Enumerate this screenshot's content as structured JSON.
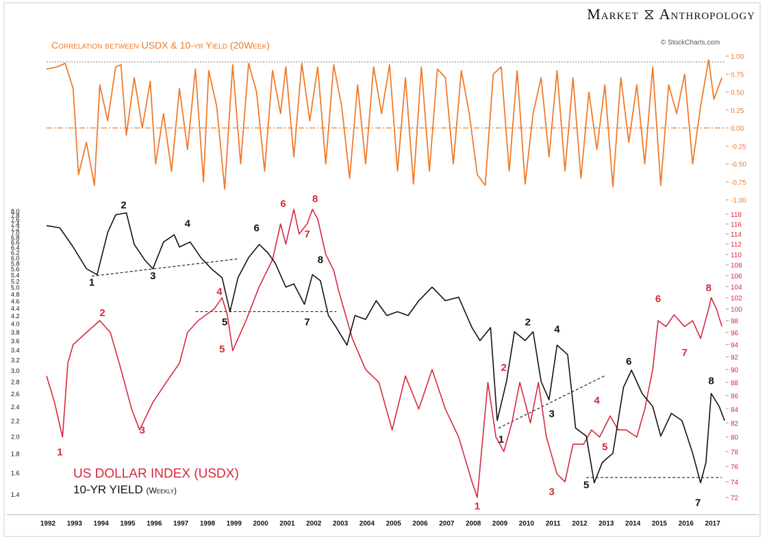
{
  "brand": {
    "left": "Market",
    "right": "Anthropology"
  },
  "watermark": "© StockCharts.com",
  "colors": {
    "orange": "#f07a2a",
    "red": "#d7283c",
    "black": "#111111",
    "dashed": "#222222"
  },
  "chart_data": [
    {
      "type": "line",
      "title": "Correlation between USDX & 10-yr Yield (20Week)",
      "ylim": [
        -1.0,
        1.0
      ],
      "y_ticks": [
        "1.00",
        "0.75",
        "0.50",
        "0.25",
        "0.00",
        "-0.25",
        "-0.50",
        "-0.75",
        "-1.00"
      ],
      "reference_lines": [
        0.92,
        0.0
      ],
      "series": [
        {
          "x": [
            1992.0,
            1992.4,
            1992.7,
            1993.0,
            1993.2,
            1993.5,
            1993.8,
            1994.0,
            1994.3,
            1994.6,
            1994.8,
            1995.0,
            1995.3,
            1995.6,
            1995.9,
            1996.1,
            1996.4,
            1996.7,
            1997.0,
            1997.3,
            1997.6,
            1997.9,
            1998.1,
            1998.4,
            1998.7,
            1999.0,
            1999.3,
            1999.6,
            1999.9,
            2000.2,
            2000.5,
            2000.8,
            2001.0,
            2001.3,
            2001.6,
            2001.9,
            2002.2,
            2002.5,
            2002.8,
            2003.1,
            2003.4,
            2003.7,
            2004.0,
            2004.3,
            2004.6,
            2004.9,
            2005.2,
            2005.5,
            2005.8,
            2006.1,
            2006.4,
            2006.7,
            2007.0,
            2007.3,
            2007.6,
            2007.9,
            2008.2,
            2008.5,
            2008.8,
            2009.1,
            2009.4,
            2009.7,
            2010.0,
            2010.3,
            2010.6,
            2010.9,
            2011.2,
            2011.5,
            2011.8,
            2012.1,
            2012.4,
            2012.7,
            2013.0,
            2013.3,
            2013.6,
            2013.9,
            2014.2,
            2014.5,
            2014.8,
            2015.1,
            2015.4,
            2015.7,
            2016.0,
            2016.3,
            2016.6,
            2016.9,
            2017.1,
            2017.4
          ],
          "y": [
            0.82,
            0.85,
            0.9,
            0.55,
            -0.65,
            -0.2,
            -0.8,
            0.6,
            0.1,
            0.85,
            0.88,
            -0.1,
            0.7,
            0.0,
            0.65,
            -0.5,
            0.2,
            -0.6,
            0.55,
            -0.3,
            0.82,
            -0.75,
            0.8,
            0.3,
            -0.85,
            0.88,
            -0.5,
            0.9,
            0.5,
            -0.6,
            0.8,
            0.2,
            0.85,
            -0.4,
            0.9,
            0.1,
            0.85,
            -0.5,
            0.88,
            0.3,
            -0.7,
            0.6,
            -0.5,
            0.85,
            0.2,
            0.88,
            -0.6,
            0.7,
            -0.78,
            0.85,
            -0.6,
            0.82,
            0.7,
            -0.5,
            0.8,
            0.2,
            -0.65,
            -0.8,
            0.75,
            0.85,
            -0.6,
            0.8,
            -0.78,
            0.2,
            0.7,
            -0.4,
            0.8,
            -0.6,
            0.7,
            -0.7,
            0.5,
            -0.3,
            0.6,
            -0.82,
            0.7,
            -0.2,
            0.6,
            -0.5,
            0.85,
            -0.8,
            0.6,
            0.2,
            0.75,
            -0.5,
            0.3,
            0.95,
            0.4,
            0.7
          ]
        }
      ]
    },
    {
      "type": "line",
      "x_ticks": [
        "1992",
        "1993",
        "1994",
        "1995",
        "1996",
        "1997",
        "1998",
        "1999",
        "2000",
        "2001",
        "2002",
        "2003",
        "2004",
        "2005",
        "2006",
        "2007",
        "2008",
        "2009",
        "2010",
        "2011",
        "2012",
        "2013",
        "2014",
        "2015",
        "2016",
        "2017"
      ],
      "y_left_ticks": [
        "8.0",
        "7.8",
        "7.6",
        "7.4",
        "7.2",
        "7.0",
        "6.8",
        "6.6",
        "6.4",
        "6.2",
        "6.0",
        "5.8",
        "5.6",
        "5.4",
        "5.2",
        "5.0",
        "4.8",
        "4.6",
        "4.4",
        "4.2",
        "4.0",
        "3.8",
        "3.6",
        "3.4",
        "3.2",
        "3.0",
        "2.8",
        "2.6",
        "2.4",
        "2.2",
        "2.0",
        "1.8",
        "1.6",
        "1.4"
      ],
      "y_right_ticks": [
        "118",
        "116",
        "114",
        "112",
        "110",
        "108",
        "106",
        "104",
        "102",
        "100",
        "98",
        "96",
        "94",
        "92",
        "90",
        "88",
        "86",
        "84",
        "82",
        "80",
        "78",
        "76",
        "74",
        "72"
      ],
      "legend": [
        "US DOLLAR INDEX (USDX)",
        "10-YR YIELD"
      ],
      "legend_suffix": "(Weekly)",
      "series": [
        {
          "name": "US DOLLAR INDEX (USDX)",
          "axis": "right",
          "x": [
            1992.0,
            1992.3,
            1992.6,
            1992.8,
            1993.0,
            1993.5,
            1994.0,
            1994.4,
            1994.8,
            1995.2,
            1995.5,
            1996.0,
            1996.5,
            1997.0,
            1997.3,
            1997.7,
            1998.0,
            1998.3,
            1998.6,
            1998.8,
            1999.0,
            1999.5,
            2000.0,
            2000.5,
            2000.8,
            2001.0,
            2001.3,
            2001.5,
            2001.8,
            2002.0,
            2002.2,
            2002.5,
            2002.8,
            2003.0,
            2003.5,
            2004.0,
            2004.5,
            2005.0,
            2005.5,
            2006.0,
            2006.5,
            2007.0,
            2007.5,
            2008.0,
            2008.2,
            2008.6,
            2008.9,
            2009.2,
            2009.5,
            2009.8,
            2010.2,
            2010.5,
            2010.8,
            2011.2,
            2011.5,
            2011.8,
            2012.2,
            2012.5,
            2012.8,
            2013.2,
            2013.5,
            2013.8,
            2014.2,
            2014.5,
            2014.8,
            2015.0,
            2015.3,
            2015.6,
            2016.0,
            2016.3,
            2016.6,
            2016.9,
            2017.0,
            2017.2,
            2017.4
          ],
          "y": [
            89,
            85,
            80,
            91,
            94,
            96,
            98,
            96,
            90,
            84,
            81,
            85,
            88,
            91,
            96,
            98,
            99,
            100,
            102,
            99,
            93,
            98,
            104,
            109,
            116,
            112,
            119,
            114,
            116,
            119,
            117,
            110,
            107,
            103,
            95,
            90,
            88,
            81,
            89,
            84,
            90,
            84,
            80,
            74,
            72,
            88,
            80,
            78,
            82,
            88,
            82,
            88,
            80,
            75,
            74,
            79,
            79,
            81,
            80,
            83,
            81,
            81,
            80,
            84,
            90,
            98,
            97,
            99,
            97,
            98,
            95,
            100,
            102,
            100,
            97
          ]
        },
        {
          "name": "10-YR YIELD",
          "axis": "left",
          "x": [
            1992.0,
            1992.5,
            1993.0,
            1993.5,
            1993.9,
            1994.3,
            1994.6,
            1995.0,
            1995.3,
            1995.7,
            1996.0,
            1996.4,
            1996.8,
            1997.0,
            1997.4,
            1997.8,
            1998.2,
            1998.6,
            1998.9,
            1999.2,
            1999.6,
            2000.0,
            2000.3,
            2000.6,
            2001.0,
            2001.3,
            2001.7,
            2002.0,
            2002.3,
            2002.6,
            2002.9,
            2003.3,
            2003.6,
            2004.0,
            2004.4,
            2004.8,
            2005.2,
            2005.6,
            2006.0,
            2006.5,
            2007.0,
            2007.5,
            2008.0,
            2008.3,
            2008.7,
            2008.95,
            2009.3,
            2009.6,
            2010.0,
            2010.3,
            2010.6,
            2010.9,
            2011.2,
            2011.6,
            2011.9,
            2012.3,
            2012.6,
            2012.9,
            2013.3,
            2013.7,
            2014.0,
            2014.4,
            2014.8,
            2015.1,
            2015.5,
            2015.9,
            2016.3,
            2016.6,
            2016.8,
            2017.0,
            2017.3,
            2017.5
          ],
          "y": [
            7.3,
            7.2,
            6.4,
            5.6,
            5.4,
            7.0,
            7.8,
            7.9,
            6.5,
            5.9,
            5.6,
            6.6,
            6.9,
            6.4,
            6.6,
            6.0,
            5.6,
            5.3,
            4.3,
            5.3,
            6.0,
            6.5,
            6.2,
            5.8,
            5.0,
            5.1,
            4.5,
            5.4,
            5.2,
            4.2,
            3.9,
            3.5,
            4.2,
            4.1,
            4.6,
            4.2,
            4.3,
            4.2,
            4.6,
            5.0,
            4.6,
            4.7,
            3.9,
            3.6,
            3.9,
            2.2,
            2.8,
            3.8,
            3.6,
            3.8,
            2.8,
            2.5,
            3.5,
            3.3,
            2.1,
            2.0,
            1.5,
            1.7,
            1.8,
            2.7,
            3.0,
            2.6,
            2.4,
            2.0,
            2.3,
            2.2,
            1.8,
            1.5,
            1.7,
            2.6,
            2.4,
            2.2
          ]
        }
      ],
      "annotations": {
        "black_wave_numbers": [
          {
            "text": "1",
            "x": 1993.7,
            "y": 5.05
          },
          {
            "text": "2",
            "x": 1994.9,
            "y": 8.12
          },
          {
            "text": "3",
            "x": 1996.0,
            "y": 5.25
          },
          {
            "text": "4",
            "x": 1997.3,
            "y": 7.25
          },
          {
            "text": "5",
            "x": 1998.7,
            "y": 3.95
          },
          {
            "text": "6",
            "x": 1999.9,
            "y": 7.05
          },
          {
            "text": "7",
            "x": 2001.8,
            "y": 3.95
          },
          {
            "text": "8",
            "x": 2002.3,
            "y": 5.8
          },
          {
            "text": "1",
            "x": 2009.1,
            "y": 1.92
          },
          {
            "text": "2",
            "x": 2010.1,
            "y": 3.95
          },
          {
            "text": "3",
            "x": 2011.0,
            "y": 2.25
          },
          {
            "text": "4",
            "x": 2011.2,
            "y": 3.78
          },
          {
            "text": "5",
            "x": 2012.3,
            "y": 1.45
          },
          {
            "text": "6",
            "x": 2013.9,
            "y": 3.1
          },
          {
            "text": "7",
            "x": 2016.5,
            "y": 1.3
          },
          {
            "text": "8",
            "x": 2017.0,
            "y": 2.75
          }
        ],
        "red_wave_numbers": [
          {
            "text": "1",
            "x": 1992.5,
            "y": 77.5
          },
          {
            "text": "2",
            "x": 1994.1,
            "y": 98.8
          },
          {
            "text": "3",
            "x": 1995.6,
            "y": 80.5
          },
          {
            "text": "4",
            "x": 1998.5,
            "y": 102.5
          },
          {
            "text": "5",
            "x": 1998.6,
            "y": 92.7
          },
          {
            "text": "6",
            "x": 2000.9,
            "y": 119.5
          },
          {
            "text": "7",
            "x": 2001.8,
            "y": 113.3
          },
          {
            "text": "8",
            "x": 2002.1,
            "y": 120.5
          },
          {
            "text": "1",
            "x": 2008.2,
            "y": 70.5
          },
          {
            "text": "2",
            "x": 2009.2,
            "y": 89.8
          },
          {
            "text": "3",
            "x": 2011.0,
            "y": 72.3
          },
          {
            "text": "4",
            "x": 2012.7,
            "y": 84.8
          },
          {
            "text": "5",
            "x": 2013.0,
            "y": 78.2
          },
          {
            "text": "6",
            "x": 2015.0,
            "y": 101.2
          },
          {
            "text": "7",
            "x": 2016.0,
            "y": 92.2
          },
          {
            "text": "8",
            "x": 2016.9,
            "y": 103.2
          }
        ],
        "trend_lines": [
          {
            "x1": 1993.7,
            "y1": 5.35,
            "x2": 1999.2,
            "y2": 5.95
          },
          {
            "x1": 1997.6,
            "y1": 4.3,
            "x2": 2002.9,
            "y2": 4.3
          },
          {
            "x1": 2009.0,
            "y1": 2.1,
            "x2": 2013.0,
            "y2": 2.9
          },
          {
            "x1": 2012.3,
            "y1": 1.55,
            "x2": 2017.4,
            "y2": 1.55
          }
        ]
      }
    }
  ]
}
